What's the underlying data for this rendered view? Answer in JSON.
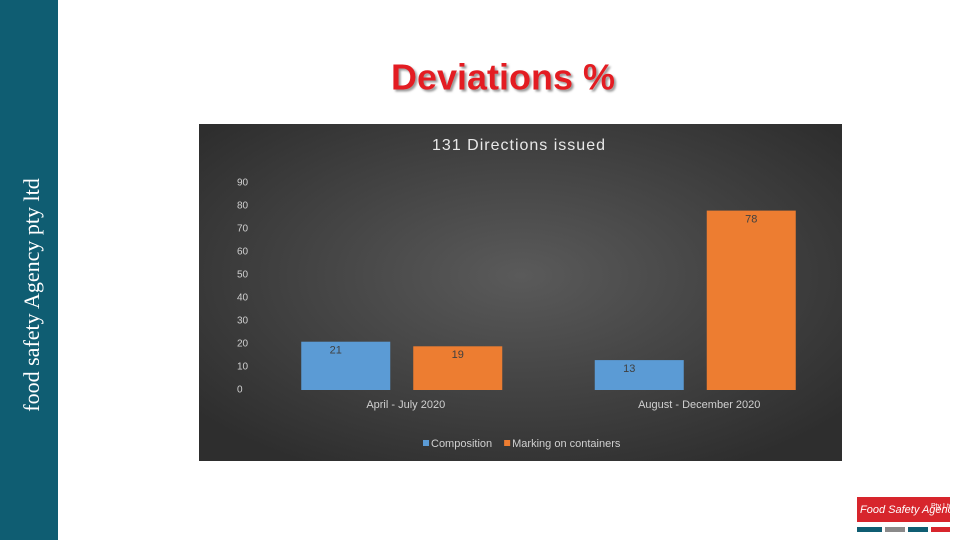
{
  "sidebar_text": "food safety Agency pty ltd",
  "title": "Deviations %",
  "logo": {
    "name": "Food Safety Agency",
    "suffix": "Pty Ltd"
  },
  "chart_data": {
    "type": "bar",
    "title": "131 Directions issued",
    "categories": [
      "April - July 2020",
      "August - December 2020"
    ],
    "series": [
      {
        "name": "Composition",
        "color": "#5b9bd5",
        "values": [
          21,
          13
        ]
      },
      {
        "name": "Marking on containers",
        "color": "#ed7d31",
        "values": [
          19,
          78
        ]
      }
    ],
    "ylim": [
      0,
      90
    ],
    "yticks": [
      0,
      10,
      20,
      30,
      40,
      50,
      60,
      70,
      80,
      90
    ],
    "grid": false,
    "legend": "bottom",
    "data_labels": true
  }
}
